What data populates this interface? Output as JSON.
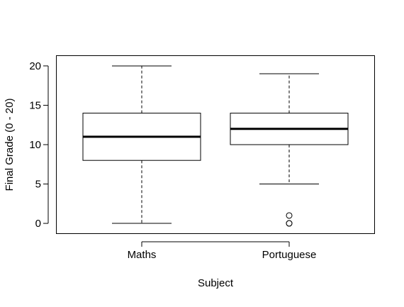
{
  "chart_data": {
    "type": "boxplot",
    "xlabel": "Subject",
    "ylabel": "Final Grade (0 - 20)",
    "categories": [
      "Maths",
      "Portuguese"
    ],
    "ylim": [
      -1.3,
      21.3
    ],
    "y_ticks": [
      0,
      5,
      10,
      15,
      20
    ],
    "grid": false,
    "series": [
      {
        "name": "Maths",
        "whisker_low": 0,
        "q1": 8,
        "median": 11,
        "q3": 14,
        "whisker_high": 20,
        "outliers": []
      },
      {
        "name": "Portuguese",
        "whisker_low": 5,
        "q1": 10,
        "median": 12,
        "q3": 14,
        "whisker_high": 19,
        "outliers": [
          1,
          0,
          0
        ]
      }
    ]
  }
}
